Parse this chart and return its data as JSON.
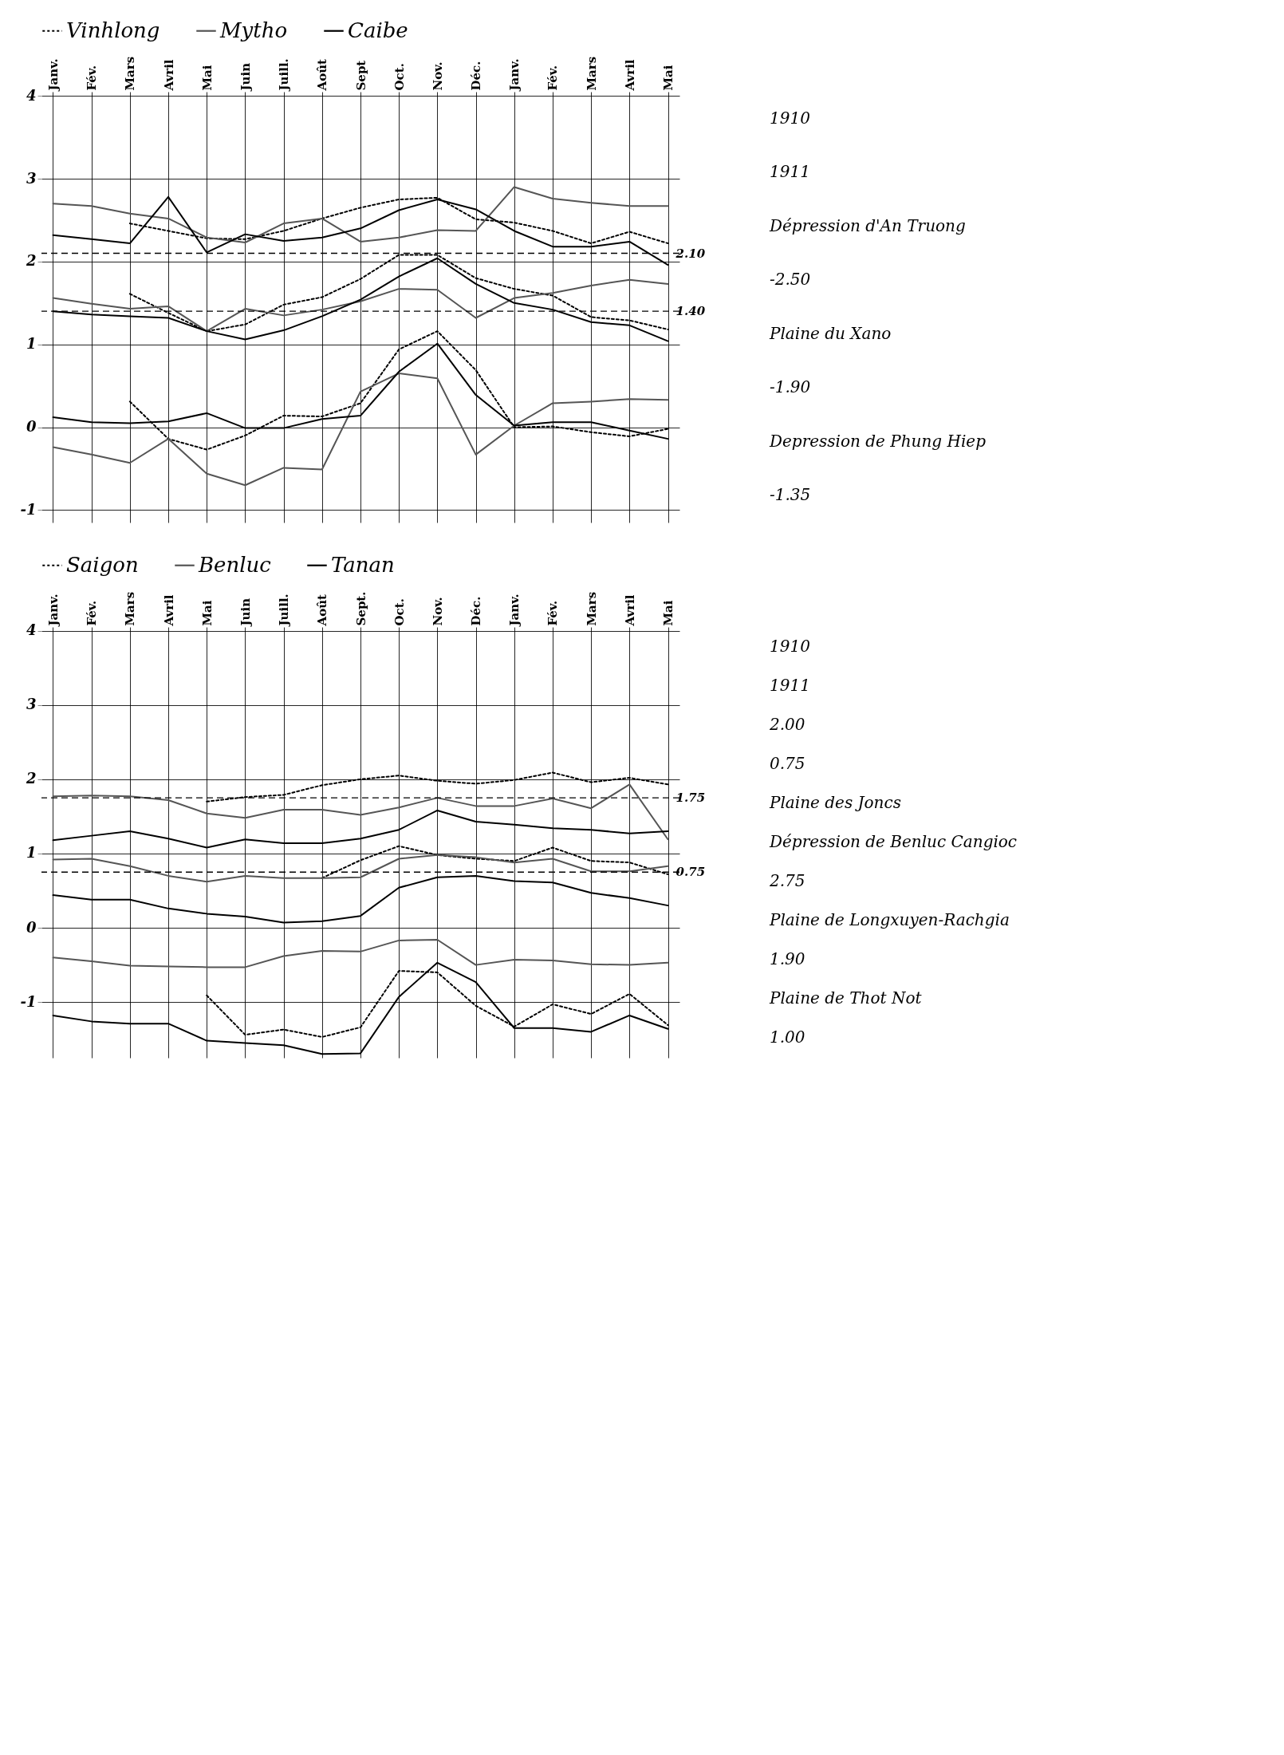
{
  "chart_data": [
    {
      "type": "line",
      "legend": "top",
      "grid": true,
      "categories": [
        "Janv.",
        "Fév.",
        "Mars",
        "Avril",
        "Mai",
        "Juin",
        "Juill.",
        "Août",
        "Sept",
        "Oct.",
        "Nov.",
        "Déc.",
        "Janv.",
        "Fév.",
        "Mars",
        "Avril",
        "Mai"
      ],
      "ylim": [
        -1.15,
        4.05
      ],
      "yticks": [
        4,
        3,
        2,
        1,
        0,
        {
          "value": -1,
          "label": "-1"
        }
      ],
      "series": [
        {
          "name": "Vinhlong",
          "color": "#000000",
          "line_style": "dotted",
          "values": [
            null,
            null,
            2.46,
            2.37,
            2.28,
            2.27,
            2.37,
            2.52,
            2.65,
            2.75,
            2.77,
            2.51,
            2.47,
            2.37,
            2.22,
            2.36,
            2.22
          ]
        },
        {
          "name": "Mytho",
          "color": "#555555",
          "line_style": "solid",
          "values": [
            2.7,
            2.67,
            2.58,
            2.52,
            2.29,
            2.23,
            2.46,
            2.52,
            2.24,
            2.29,
            2.38,
            2.37,
            2.9,
            2.76,
            2.71,
            2.67,
            2.67
          ]
        },
        {
          "name": "Caibe",
          "color": "#000000",
          "line_style": "solid",
          "values": [
            2.32,
            2.27,
            2.22,
            2.78,
            2.11,
            2.33,
            2.25,
            2.29,
            2.4,
            2.62,
            2.75,
            2.63,
            2.37,
            2.18,
            2.18,
            2.24,
            1.96
          ]
        },
        {
          "color": "#000000",
          "line_style": "dotted",
          "values": [
            null,
            null,
            1.61,
            1.38,
            1.16,
            1.24,
            1.48,
            1.57,
            1.79,
            2.08,
            2.08,
            1.8,
            1.67,
            1.59,
            1.33,
            1.29,
            1.18
          ]
        },
        {
          "color": "#555555",
          "line_style": "solid",
          "values": [
            1.56,
            1.49,
            1.43,
            1.46,
            1.16,
            1.43,
            1.35,
            1.42,
            1.52,
            1.67,
            1.66,
            1.32,
            1.56,
            1.62,
            1.71,
            1.78,
            1.73
          ]
        },
        {
          "color": "#000000",
          "line_style": "solid",
          "values": [
            1.4,
            1.36,
            1.34,
            1.32,
            1.16,
            1.06,
            1.17,
            1.34,
            1.54,
            1.82,
            2.04,
            1.73,
            1.5,
            1.42,
            1.27,
            1.23,
            1.04
          ]
        },
        {
          "color": "#000000",
          "line_style": "dotted",
          "values": [
            null,
            null,
            0.31,
            -0.14,
            -0.27,
            -0.1,
            0.14,
            0.13,
            0.29,
            0.94,
            1.16,
            0.69,
            0.0,
            0.01,
            -0.06,
            -0.11,
            -0.02
          ]
        },
        {
          "color": "#555555",
          "line_style": "solid",
          "values": [
            -0.24,
            -0.33,
            -0.43,
            -0.14,
            -0.56,
            -0.7,
            -0.49,
            -0.51,
            0.43,
            0.65,
            0.59,
            -0.33,
            0.02,
            0.29,
            0.31,
            0.34,
            0.33
          ]
        },
        {
          "color": "#000000",
          "line_style": "solid",
          "values": [
            0.12,
            0.06,
            0.05,
            0.07,
            0.17,
            -0.01,
            -0.01,
            0.1,
            0.14,
            0.67,
            1.01,
            0.39,
            0.02,
            0.06,
            0.06,
            -0.04,
            -0.14
          ]
        }
      ],
      "ref_lines": [
        {
          "axis": "y",
          "value": 2.1,
          "label": "2.10",
          "line_style": "dashed"
        },
        {
          "axis": "y",
          "value": 1.4,
          "label": "1.40",
          "line_style": "dashed"
        }
      ],
      "annotations": [
        "1910",
        "1911",
        "Dépression d'An Truong",
        "-2.50",
        "Plaine du Xano",
        "-1.90",
        "Depression de Phung Hiep",
        "-1.35"
      ]
    },
    {
      "type": "line",
      "legend": "top",
      "grid": true,
      "categories": [
        "Janv.",
        "Fév.",
        "Mars",
        "Avril",
        "Mai",
        "Juin",
        "Juill.",
        "Août",
        "Sept.",
        "Oct.",
        "Nov.",
        "Déc.",
        "Janv.",
        "Fév.",
        "Mars",
        "Avril",
        "Mai"
      ],
      "ylim": [
        -1.75,
        4.05
      ],
      "yticks": [
        4,
        3,
        2,
        1,
        0,
        {
          "value": -1,
          "label": "-1"
        }
      ],
      "series": [
        {
          "name": "Saigon",
          "color": "#000000",
          "line_style": "dotted",
          "values": [
            null,
            null,
            null,
            null,
            1.7,
            1.76,
            1.79,
            1.92,
            2.0,
            2.05,
            1.98,
            1.94,
            1.99,
            2.09,
            1.96,
            2.02,
            1.93
          ]
        },
        {
          "name": "Benluc",
          "color": "#555555",
          "line_style": "solid",
          "values": [
            1.77,
            1.78,
            1.77,
            1.72,
            1.54,
            1.48,
            1.59,
            1.59,
            1.52,
            1.62,
            1.75,
            1.64,
            1.64,
            1.74,
            1.61,
            1.93,
            1.19
          ]
        },
        {
          "name": "Tanan",
          "color": "#000000",
          "line_style": "solid",
          "values": [
            1.18,
            1.24,
            1.3,
            1.2,
            1.08,
            1.19,
            1.14,
            1.14,
            1.2,
            1.32,
            1.58,
            1.43,
            1.39,
            1.34,
            1.32,
            1.27,
            1.3
          ]
        },
        {
          "color": "#000000",
          "line_style": "dotted",
          "values": [
            null,
            null,
            null,
            null,
            null,
            null,
            null,
            0.67,
            0.91,
            1.1,
            0.98,
            0.93,
            0.9,
            1.08,
            0.9,
            0.88,
            0.72
          ]
        },
        {
          "color": "#555555",
          "line_style": "solid",
          "values": [
            0.92,
            0.93,
            0.83,
            0.7,
            0.62,
            0.7,
            0.67,
            0.67,
            0.68,
            0.93,
            0.98,
            0.95,
            0.88,
            0.93,
            0.76,
            0.76,
            0.83
          ]
        },
        {
          "color": "#000000",
          "line_style": "solid",
          "values": [
            0.44,
            0.38,
            0.38,
            0.26,
            0.19,
            0.15,
            0.07,
            0.09,
            0.16,
            0.54,
            0.68,
            0.7,
            0.63,
            0.61,
            0.47,
            0.4,
            0.3
          ]
        },
        {
          "color": "#000000",
          "line_style": "dotted",
          "values": [
            null,
            null,
            null,
            null,
            -0.91,
            -1.44,
            -1.37,
            -1.47,
            -1.34,
            -0.58,
            -0.6,
            -1.05,
            -1.33,
            -1.03,
            -1.16,
            -0.89,
            -1.31
          ]
        },
        {
          "color": "#555555",
          "line_style": "solid",
          "values": [
            -0.4,
            -0.45,
            -0.51,
            -0.52,
            -0.53,
            -0.53,
            -0.38,
            -0.31,
            -0.32,
            -0.17,
            -0.16,
            -0.5,
            -0.43,
            -0.44,
            -0.49,
            -0.5,
            -0.47
          ]
        },
        {
          "color": "#000000",
          "line_style": "solid",
          "values": [
            -1.18,
            -1.26,
            -1.29,
            -1.29,
            -1.52,
            -1.55,
            -1.58,
            -1.7,
            -1.69,
            -0.93,
            -0.47,
            -0.73,
            -1.35,
            -1.35,
            -1.4,
            -1.18,
            -1.36
          ]
        }
      ],
      "ref_lines": [
        {
          "axis": "y",
          "value": 1.75,
          "label": "1.75",
          "line_style": "dashed"
        },
        {
          "axis": "y",
          "value": 0.75,
          "label": "0.75",
          "line_style": "dashed"
        }
      ],
      "annotations": [
        "1910",
        "1911",
        "2.00",
        "0.75",
        "Plaine des Joncs",
        "Dépression de Benluc Cangioc",
        "2.75",
        "Plaine de Longxuyen-Rachgia",
        "1.90",
        "Plaine de Thot Not",
        "1.00"
      ]
    }
  ]
}
